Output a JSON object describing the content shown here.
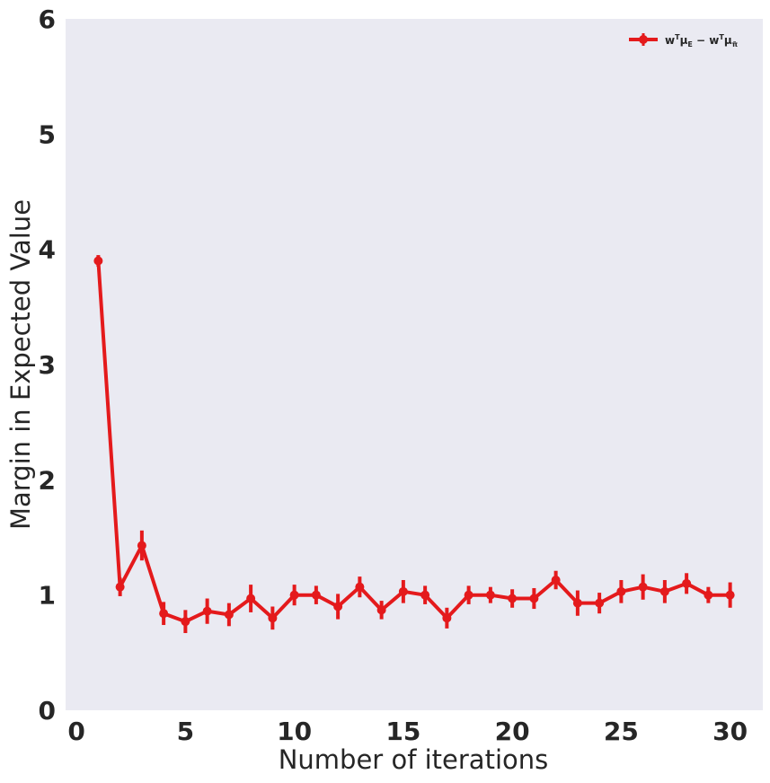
{
  "chart_data": {
    "type": "line",
    "title": "",
    "xlabel": "Number of iterations",
    "ylabel": "Margin in Expected Value",
    "xlim": [
      -0.5,
      31.5
    ],
    "ylim": [
      0,
      6
    ],
    "xticks": [
      0,
      5,
      10,
      15,
      20,
      25,
      30
    ],
    "yticks": [
      0,
      1,
      2,
      3,
      4,
      5,
      6
    ],
    "grid": false,
    "legend_position": "top-right",
    "colors": {
      "background": "#eaeaf2",
      "series": "#e41a1c",
      "text": "#262626"
    },
    "series": [
      {
        "name": "w^T μ_E − w^T μ_π̃",
        "x": [
          1,
          2,
          3,
          4,
          5,
          6,
          7,
          8,
          9,
          10,
          11,
          12,
          13,
          14,
          15,
          16,
          17,
          18,
          19,
          20,
          21,
          22,
          23,
          24,
          25,
          26,
          27,
          28,
          29,
          30
        ],
        "values": [
          3.9,
          1.07,
          1.43,
          0.84,
          0.77,
          0.86,
          0.83,
          0.97,
          0.8,
          1.0,
          1.0,
          0.9,
          1.07,
          0.87,
          1.03,
          1.0,
          0.8,
          1.0,
          1.0,
          0.97,
          0.97,
          1.13,
          0.93,
          0.93,
          1.03,
          1.07,
          1.03,
          1.1,
          1.0,
          1.0
        ],
        "errors": [
          0.05,
          0.08,
          0.13,
          0.1,
          0.1,
          0.11,
          0.1,
          0.12,
          0.1,
          0.09,
          0.08,
          0.11,
          0.09,
          0.08,
          0.1,
          0.08,
          0.09,
          0.08,
          0.07,
          0.08,
          0.09,
          0.08,
          0.11,
          0.09,
          0.1,
          0.11,
          0.1,
          0.09,
          0.07,
          0.11
        ]
      }
    ]
  }
}
